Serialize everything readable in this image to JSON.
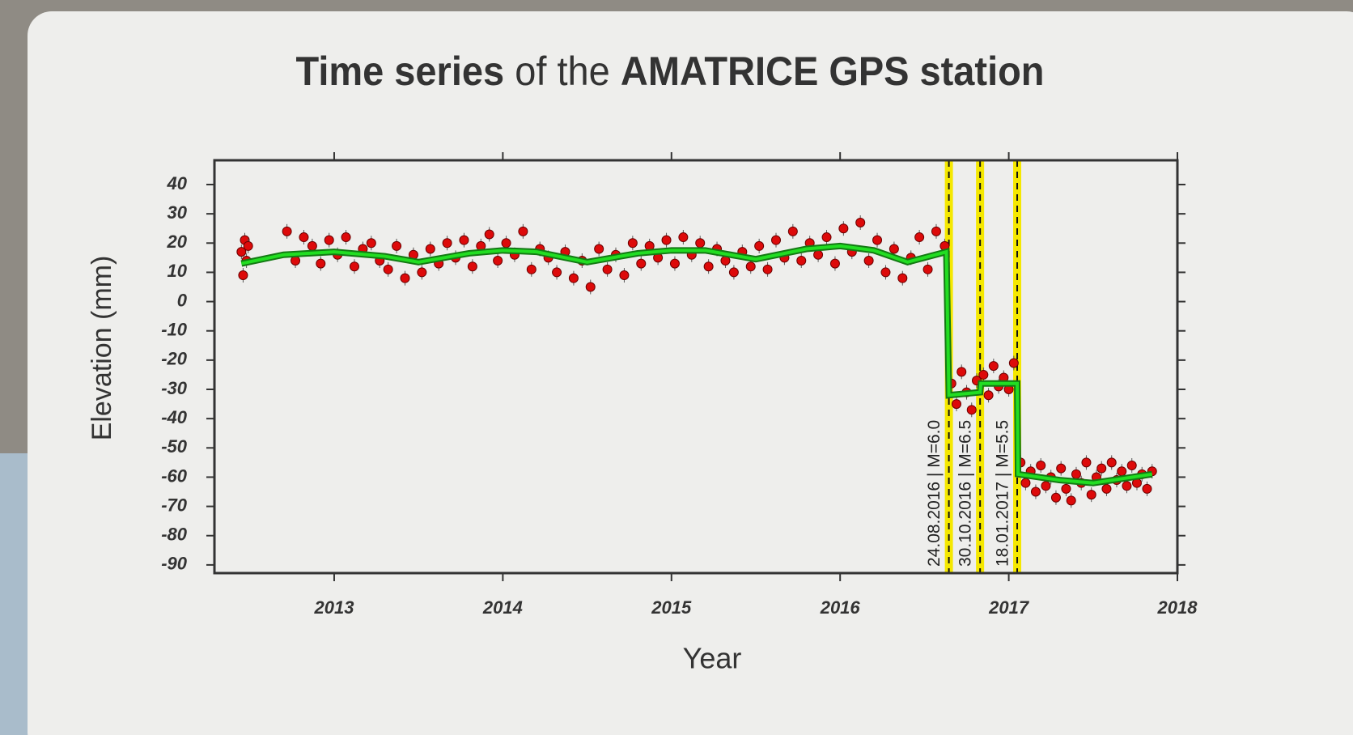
{
  "chart_data": {
    "type": "scatter",
    "title": [
      "Time series",
      "of the",
      "AMATRICE GPS station"
    ],
    "title_bold": [
      true,
      false,
      true
    ],
    "xlabel": "Year",
    "ylabel": "Elevation  (mm)",
    "xlim": [
      2012.29,
      2018.0
    ],
    "ylim": [
      -92.8,
      48.3
    ],
    "xticks": [
      2013,
      2014,
      2015,
      2016,
      2017,
      2018
    ],
    "yticks": [
      40,
      30,
      20,
      10,
      0,
      -10,
      -20,
      -30,
      -40,
      -50,
      -60,
      -70,
      -80,
      -90
    ],
    "series": [
      {
        "type": "scatter",
        "color": "#dd0a0a",
        "x": [
          2012.45,
          2012.46,
          2012.47,
          2012.48,
          2012.49,
          2012.72,
          2012.77,
          2012.82,
          2012.87,
          2012.92,
          2012.97,
          2013.02,
          2013.07,
          2013.12,
          2013.17,
          2013.22,
          2013.27,
          2013.32,
          2013.37,
          2013.42,
          2013.47,
          2013.52,
          2013.57,
          2013.62,
          2013.67,
          2013.72,
          2013.77,
          2013.82,
          2013.87,
          2013.92,
          2013.97,
          2014.02,
          2014.07,
          2014.12,
          2014.17,
          2014.22,
          2014.27,
          2014.32,
          2014.37,
          2014.42,
          2014.47,
          2014.52,
          2014.57,
          2014.62,
          2014.67,
          2014.72,
          2014.77,
          2014.82,
          2014.87,
          2014.92,
          2014.97,
          2015.02,
          2015.07,
          2015.12,
          2015.17,
          2015.22,
          2015.27,
          2015.32,
          2015.37,
          2015.42,
          2015.47,
          2015.52,
          2015.57,
          2015.62,
          2015.67,
          2015.72,
          2015.77,
          2015.82,
          2015.87,
          2015.92,
          2015.97,
          2016.02,
          2016.07,
          2016.12,
          2016.17,
          2016.22,
          2016.27,
          2016.32,
          2016.37,
          2016.42,
          2016.47,
          2016.52,
          2016.57,
          2016.62,
          2016.66,
          2016.69,
          2016.72,
          2016.75,
          2016.78,
          2016.81,
          2016.85,
          2016.88,
          2016.91,
          2016.94,
          2016.97,
          2017.0,
          2017.03,
          2017.07,
          2017.1,
          2017.13,
          2017.16,
          2017.19,
          2017.22,
          2017.25,
          2017.28,
          2017.31,
          2017.34,
          2017.37,
          2017.4,
          2017.43,
          2017.46,
          2017.49,
          2017.52,
          2017.55,
          2017.58,
          2017.61,
          2017.64,
          2017.67,
          2017.7,
          2017.73,
          2017.76,
          2017.79,
          2017.82,
          2017.85
        ],
        "values": [
          17,
          9,
          21,
          14,
          19,
          24,
          14,
          22,
          19,
          13,
          21,
          16,
          22,
          12,
          18,
          20,
          14,
          11,
          19,
          8,
          16,
          10,
          18,
          13,
          20,
          15,
          21,
          12,
          19,
          23,
          14,
          20,
          16,
          24,
          11,
          18,
          15,
          10,
          17,
          8,
          14,
          5,
          18,
          11,
          16,
          9,
          20,
          13,
          19,
          15,
          21,
          13,
          22,
          16,
          20,
          12,
          18,
          14,
          10,
          17,
          12,
          19,
          11,
          21,
          15,
          24,
          14,
          20,
          16,
          22,
          13,
          25,
          17,
          27,
          14,
          21,
          10,
          18,
          8,
          15,
          22,
          11,
          24,
          19,
          -28,
          -35,
          -24,
          -31,
          -37,
          -27,
          -25,
          -32,
          -22,
          -29,
          -26,
          -30,
          -21,
          -55,
          -62,
          -58,
          -65,
          -56,
          -63,
          -60,
          -67,
          -57,
          -64,
          -68,
          -59,
          -62,
          -55,
          -66,
          -60,
          -57,
          -64,
          -55,
          -61,
          -58,
          -63,
          -56,
          -62,
          -59,
          -64,
          -58
        ]
      },
      {
        "type": "line",
        "color": "#22dd22",
        "x": [
          2012.45,
          2012.7,
          2013.0,
          2013.3,
          2013.5,
          2013.8,
          2014.0,
          2014.2,
          2014.5,
          2014.8,
          2015.0,
          2015.2,
          2015.5,
          2015.8,
          2016.0,
          2016.2,
          2016.4,
          2016.63,
          2016.645,
          2016.83,
          2016.835,
          2017.05,
          2017.055,
          2017.3,
          2017.5,
          2017.85
        ],
        "values": [
          13,
          16,
          17,
          15.5,
          13.5,
          16.5,
          17.5,
          17,
          13.5,
          16.5,
          17.5,
          17.5,
          14.5,
          18,
          19,
          17.5,
          13.5,
          17,
          -32,
          -31,
          -28,
          -28,
          -59,
          -61,
          -62,
          -59
        ]
      }
    ],
    "events": [
      {
        "x": 2016.645,
        "label": "24.08.2016 | M=6.0"
      },
      {
        "x": 2016.83,
        "label": "30.10.2016 | M=6.5"
      },
      {
        "x": 2017.05,
        "label": "18.01.2017 | M=5.5"
      }
    ]
  }
}
